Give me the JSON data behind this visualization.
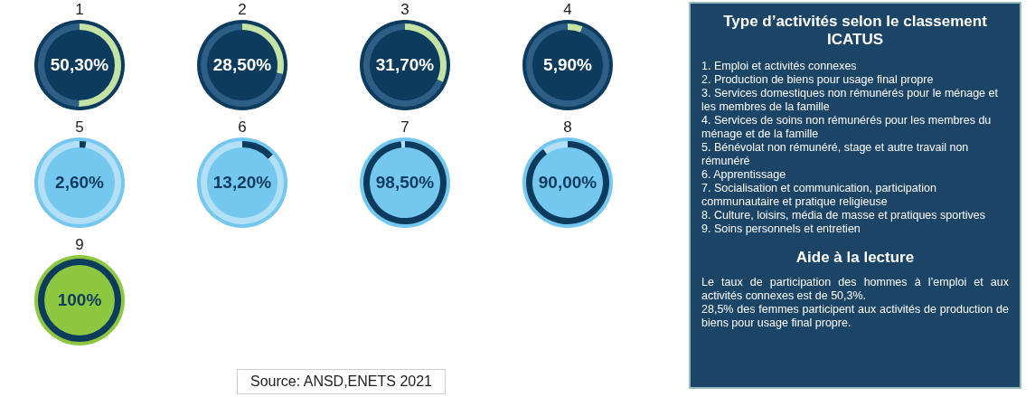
{
  "chart_data": [
    {
      "type": "donut",
      "title": "1",
      "categories": [
        null,
        null
      ],
      "values": [
        50.3,
        49.7
      ],
      "colors": [
        "#c5e3a5",
        "#2d5f86"
      ],
      "value_labels": [
        "50,30%",
        null
      ]
    },
    {
      "type": "donut",
      "title": "2",
      "categories": [
        null,
        null
      ],
      "values": [
        28.5,
        71.5
      ],
      "colors": [
        "#c5e3a5",
        "#2d5f86"
      ],
      "value_labels": [
        "28,50%",
        null
      ]
    },
    {
      "type": "donut",
      "title": "3",
      "categories": [
        null,
        null
      ],
      "values": [
        31.7,
        68.3
      ],
      "colors": [
        "#c5e3a5",
        "#2d5f86"
      ],
      "value_labels": [
        "31,70%",
        null
      ]
    },
    {
      "type": "donut",
      "title": "4",
      "categories": [
        null,
        null
      ],
      "values": [
        5.9,
        94.1
      ],
      "colors": [
        "#c5e3a5",
        "#2d5f86"
      ],
      "value_labels": [
        "5,90%",
        null
      ]
    },
    {
      "type": "donut",
      "title": "5",
      "categories": [
        null,
        null
      ],
      "values": [
        2.6,
        97.4
      ],
      "colors": [
        "#0d3b5e",
        "#b3e0f7"
      ],
      "value_labels": [
        "2,60%",
        null
      ]
    },
    {
      "type": "donut",
      "title": "6",
      "categories": [
        null,
        null
      ],
      "values": [
        13.2,
        86.8
      ],
      "colors": [
        "#0d3b5e",
        "#b3e0f7"
      ],
      "value_labels": [
        "13,20%",
        null
      ]
    },
    {
      "type": "donut",
      "title": "7",
      "categories": [
        null,
        null
      ],
      "values": [
        98.5,
        1.5
      ],
      "colors": [
        "#0d3b5e",
        "#b3e0f7"
      ],
      "value_labels": [
        "98,50%",
        null
      ]
    },
    {
      "type": "donut",
      "title": "8",
      "categories": [
        null,
        null
      ],
      "values": [
        90.0,
        10.0
      ],
      "colors": [
        "#0d3b5e",
        "#b3e0f7"
      ],
      "value_labels": [
        "90,00%",
        null
      ]
    },
    {
      "type": "donut",
      "title": "9",
      "categories": [
        null
      ],
      "values": [
        100
      ],
      "colors": [
        "#0d3b5e"
      ],
      "value_labels": [
        "100%"
      ]
    },
    {
      "type": "other",
      "title": "Type d’activités selon le classement ICATUS",
      "annotations": [
        "1. Emploi et activités connexes",
        "2. Production de biens pour usage final propre",
        "3. Services domestiques non rémunérés pour le ménage et les membres de la famille",
        "4. Services de soins non rémunérés pour les membres du ménage et de la famille",
        "5. Bénévolat non rémunéré, stage et autre travail non rémunéré",
        "6. Apprentissage",
        "7. Socialisation et communication, participation communautaire et pratique religieuse",
        "8. Culture, loisirs, média de masse et pratiques sportives",
        "9. Soins personnels et entretien",
        "Aide à la lecture",
        "Le taux de participation des hommes à l’emploi et aux activités connexes est de 50,3%.",
        "28,5% des femmes participent aux activités de production de biens pour usage final propre.",
        "Source: ANSD,ENETS 2021"
      ]
    }
  ]
}
